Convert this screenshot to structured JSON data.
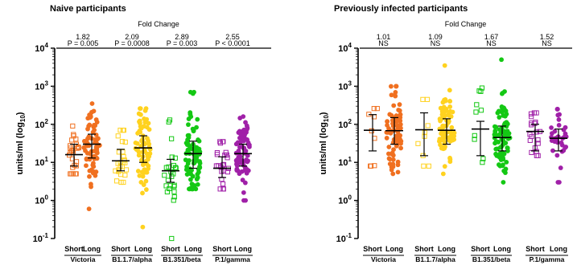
{
  "colors": {
    "victoria": "#F07020",
    "alpha": "#FFD21F",
    "beta": "#14C814",
    "gamma": "#A020A8",
    "axis": "#000000"
  },
  "chart_data": [
    {
      "type": "scatter",
      "title": "Naive participants",
      "ylabel": "units/ml (log",
      "ylabel_sub": "10",
      "ylabel_end": ")",
      "yscale": "log",
      "ylim": [
        0.1,
        10000
      ],
      "yticks": [
        {
          "value": 0.1,
          "base": "10",
          "exp": "-1"
        },
        {
          "value": 1,
          "base": "10",
          "exp": "0"
        },
        {
          "value": 10,
          "base": "10",
          "exp": "1"
        },
        {
          "value": 100,
          "base": "10",
          "exp": "2"
        },
        {
          "value": 1000,
          "base": "10",
          "exp": "3"
        },
        {
          "value": 10000,
          "base": "10",
          "exp": "4"
        }
      ],
      "fold_change_label": "Fold Change",
      "groups": [
        {
          "key": "victoria",
          "name": "Victoria",
          "fold_change": "1.82",
          "p_label": "P = 0.005",
          "short": {
            "label": "Short",
            "median": 16,
            "q1": 8,
            "q3": 30,
            "n": 26,
            "min": 5,
            "max": 90,
            "style": "open"
          },
          "long": {
            "label": "Long",
            "median": 30,
            "q1": 13,
            "q3": 55,
            "n": 70,
            "min": 0.6,
            "max": 350,
            "style": "filled"
          }
        },
        {
          "key": "alpha",
          "name": "B1.1.7/alpha",
          "fold_change": "2.09",
          "p_label": "P = 0.0008",
          "short": {
            "label": "Short",
            "median": 11,
            "q1": 6,
            "q3": 22,
            "n": 26,
            "min": 3,
            "max": 70,
            "style": "open"
          },
          "long": {
            "label": "Long",
            "median": 24,
            "q1": 10,
            "q3": 50,
            "n": 75,
            "min": 0.2,
            "max": 260,
            "style": "filled"
          }
        },
        {
          "key": "beta",
          "name": "B1.351/beta",
          "fold_change": "2.89",
          "p_label": "P = 0.003",
          "short": {
            "label": "Short",
            "median": 6,
            "q1": 3,
            "q3": 12,
            "n": 25,
            "min": 0.1,
            "max": 130,
            "style": "open"
          },
          "long": {
            "label": "Long",
            "median": 17,
            "q1": 7,
            "q3": 36,
            "n": 80,
            "min": 2,
            "max": 700,
            "style": "filled"
          }
        },
        {
          "key": "gamma",
          "name": "P.1/gamma",
          "fold_change": "2.55",
          "p_label": "P < 0.0001",
          "short": {
            "label": "Short",
            "median": 7,
            "q1": 4,
            "q3": 14,
            "n": 25,
            "min": 2,
            "max": 35,
            "style": "open"
          },
          "long": {
            "label": "Long",
            "median": 17,
            "q1": 8,
            "q3": 30,
            "n": 80,
            "min": 1,
            "max": 160,
            "style": "filled"
          }
        }
      ]
    },
    {
      "type": "scatter",
      "title": "Previously infected participants",
      "ylabel": "units/ml (log",
      "ylabel_sub": "10",
      "ylabel_end": ")",
      "yscale": "log",
      "ylim": [
        0.1,
        10000
      ],
      "yticks": [
        {
          "value": 0.1,
          "base": "10",
          "exp": "-1"
        },
        {
          "value": 1,
          "base": "10",
          "exp": "0"
        },
        {
          "value": 10,
          "base": "10",
          "exp": "1"
        },
        {
          "value": 100,
          "base": "10",
          "exp": "2"
        },
        {
          "value": 1000,
          "base": "10",
          "exp": "3"
        },
        {
          "value": 10000,
          "base": "10",
          "exp": "4"
        }
      ],
      "fold_change_label": "Fold Change",
      "groups": [
        {
          "key": "victoria",
          "name": "Victoria",
          "fold_change": "1.01",
          "p_label": "NS",
          "short": {
            "label": "Short",
            "median": 70,
            "q1": 20,
            "q3": 180,
            "n": 9,
            "min": 8,
            "max": 260,
            "style": "open"
          },
          "long": {
            "label": "Long",
            "median": 68,
            "q1": 30,
            "q3": 150,
            "n": 80,
            "min": 5,
            "max": 1000,
            "style": "filled"
          }
        },
        {
          "key": "alpha",
          "name": "B1.1.7/alpha",
          "fold_change": "1.09",
          "p_label": "NS",
          "short": {
            "label": "Short",
            "median": 72,
            "q1": 15,
            "q3": 200,
            "n": 9,
            "min": 8,
            "max": 450,
            "style": "open"
          },
          "long": {
            "label": "Long",
            "median": 70,
            "q1": 30,
            "q3": 140,
            "n": 80,
            "min": 5,
            "max": 3500,
            "style": "filled"
          }
        },
        {
          "key": "beta",
          "name": "B1.351/beta",
          "fold_change": "1.67",
          "p_label": "NS",
          "short": {
            "label": "Short",
            "median": 75,
            "q1": 15,
            "q3": 120,
            "n": 10,
            "min": 10,
            "max": 900,
            "style": "open"
          },
          "long": {
            "label": "Long",
            "median": 45,
            "q1": 20,
            "q3": 90,
            "n": 80,
            "min": 3,
            "max": 5000,
            "style": "filled"
          }
        },
        {
          "key": "gamma",
          "name": "P.1/gamma",
          "fold_change": "1.52",
          "p_label": "NS",
          "short": {
            "label": "Short",
            "median": 65,
            "q1": 20,
            "q3": 100,
            "n": 20,
            "min": 15,
            "max": 200,
            "style": "open"
          },
          "long": {
            "label": "Long",
            "median": 43,
            "q1": 20,
            "q3": 75,
            "n": 35,
            "min": 3,
            "max": 250,
            "style": "filled"
          }
        }
      ]
    }
  ]
}
